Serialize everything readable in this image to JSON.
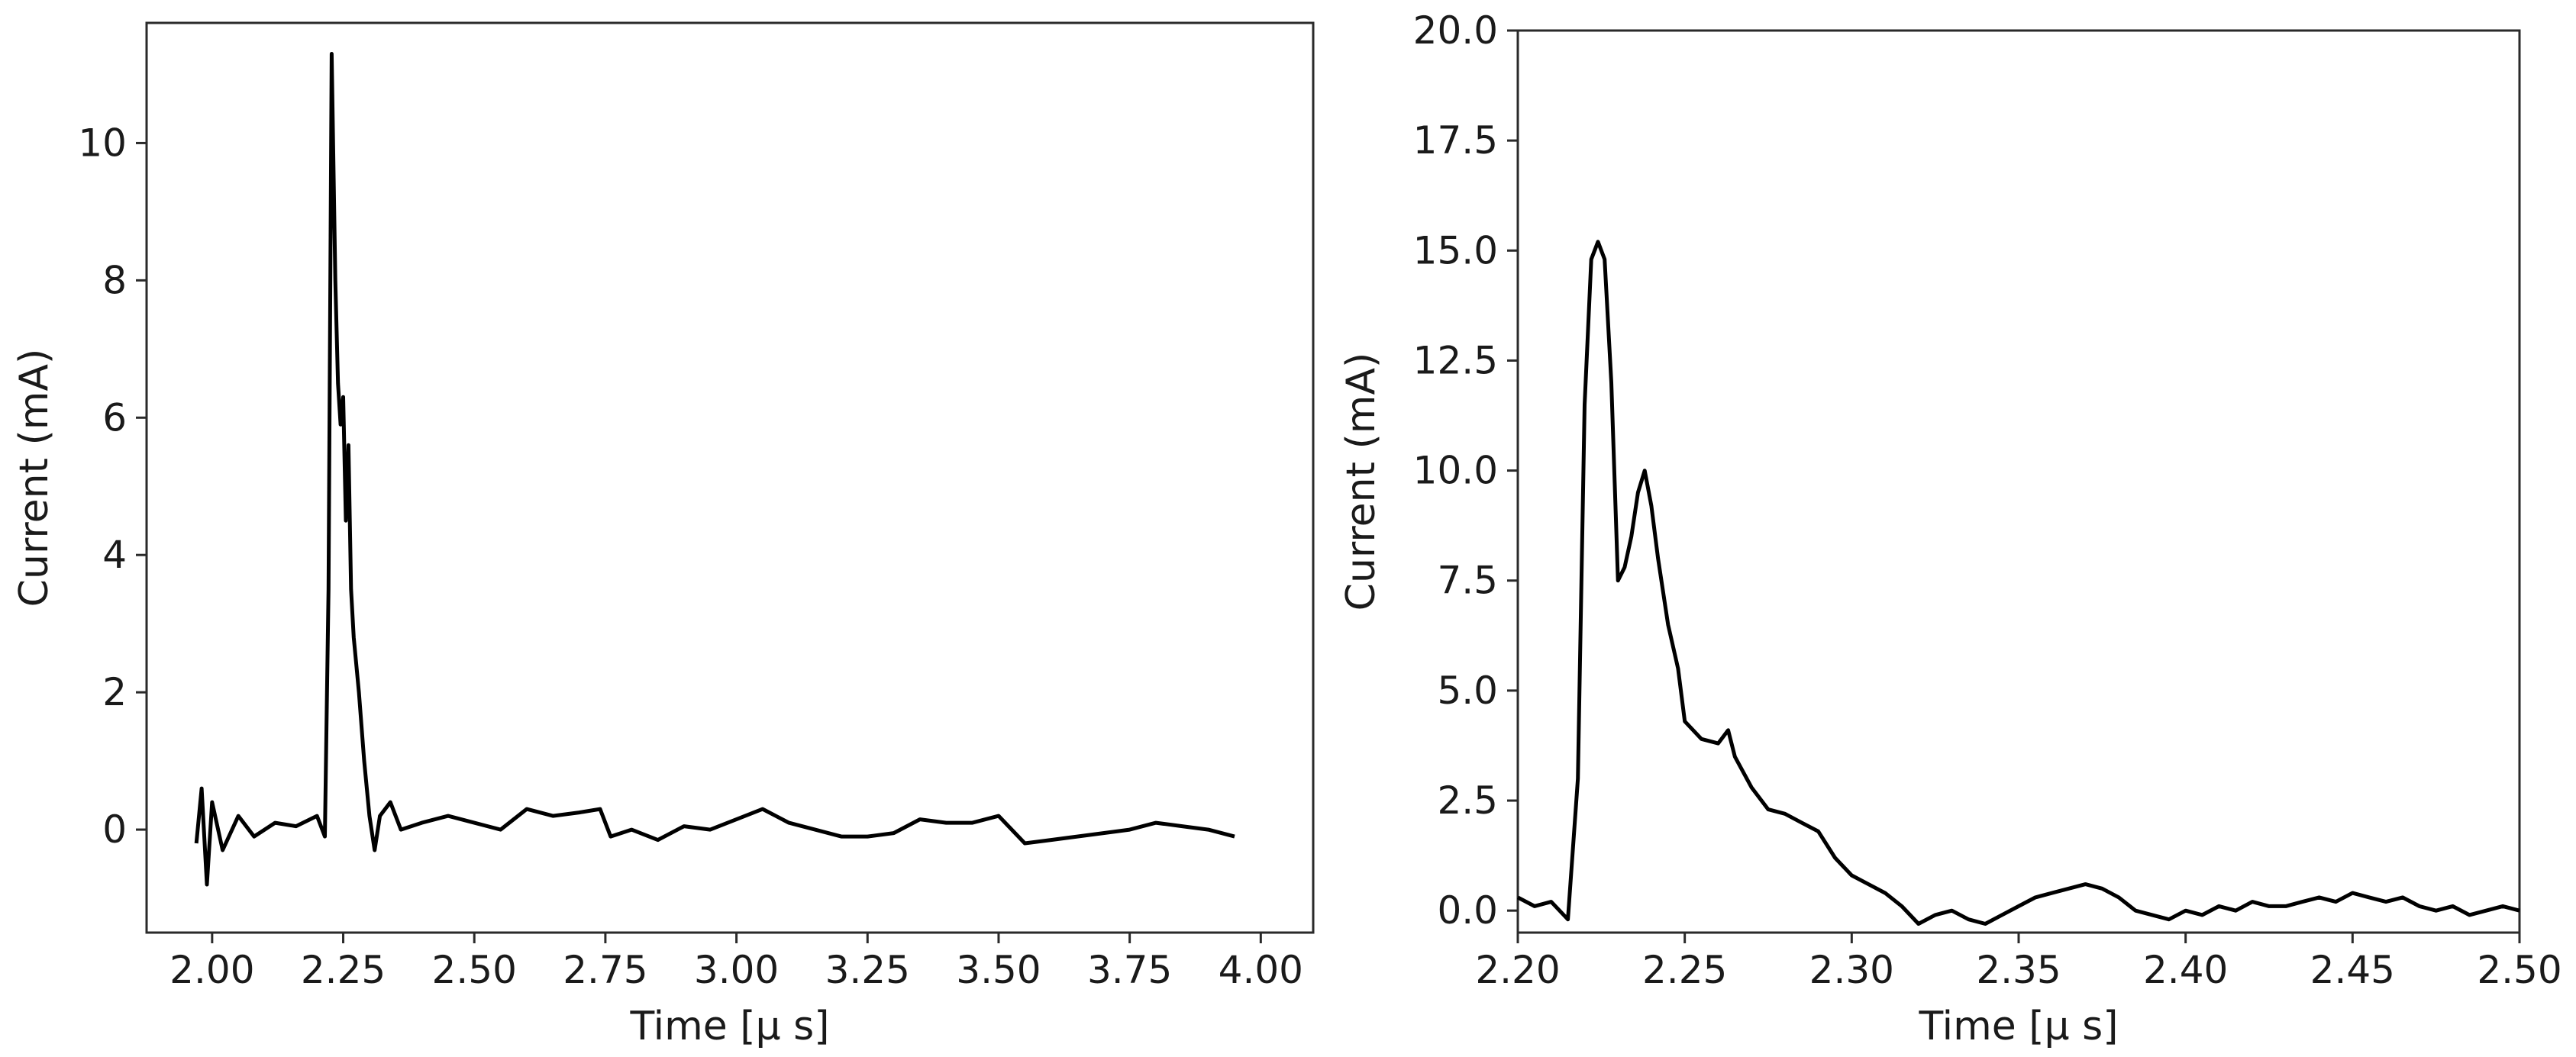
{
  "chart_data": [
    {
      "type": "line",
      "xlabel": "Time [μ s]",
      "ylabel": "Current (mA)",
      "xlim": [
        1.875,
        4.1
      ],
      "ylim": [
        -1.5,
        11.75
      ],
      "xticks": [
        "2.00",
        "2.25",
        "2.50",
        "2.75",
        "3.00",
        "3.25",
        "3.50",
        "3.75",
        "4.00"
      ],
      "yticks": [
        "0",
        "2",
        "4",
        "6",
        "8",
        "10"
      ],
      "grid": false,
      "series": [
        {
          "color": "#000000",
          "x": [
            1.97,
            1.98,
            1.99,
            2.0,
            2.02,
            2.05,
            2.08,
            2.12,
            2.16,
            2.2,
            2.215,
            2.222,
            2.228,
            2.235,
            2.24,
            2.245,
            2.25,
            2.255,
            2.26,
            2.265,
            2.27,
            2.28,
            2.29,
            2.3,
            2.31,
            2.32,
            2.34,
            2.36,
            2.4,
            2.45,
            2.5,
            2.55,
            2.6,
            2.65,
            2.7,
            2.74,
            2.76,
            2.8,
            2.85,
            2.9,
            2.95,
            3.0,
            3.05,
            3.1,
            3.15,
            3.2,
            3.25,
            3.3,
            3.35,
            3.4,
            3.45,
            3.5,
            3.55,
            3.6,
            3.65,
            3.7,
            3.75,
            3.8,
            3.85,
            3.9,
            3.95
          ],
          "y": [
            -0.2,
            0.6,
            -0.8,
            0.4,
            -0.3,
            0.2,
            -0.1,
            0.1,
            0.05,
            0.2,
            -0.1,
            3.5,
            11.3,
            8.0,
            6.5,
            5.9,
            6.3,
            4.5,
            5.6,
            3.5,
            2.8,
            2.0,
            1.0,
            0.2,
            -0.3,
            0.2,
            0.4,
            0.0,
            0.1,
            0.2,
            0.1,
            0.0,
            0.3,
            0.2,
            0.25,
            0.3,
            -0.1,
            0.0,
            -0.15,
            0.05,
            0.0,
            0.15,
            0.3,
            0.1,
            0.0,
            -0.1,
            -0.1,
            -0.05,
            0.15,
            0.1,
            0.1,
            0.2,
            -0.2,
            -0.15,
            -0.1,
            -0.05,
            0.0,
            0.1,
            0.05,
            0.0,
            -0.1
          ]
        }
      ]
    },
    {
      "type": "line",
      "xlabel": "Time [μ s]",
      "ylabel": "Current (mA)",
      "xlim": [
        2.2,
        2.5
      ],
      "ylim": [
        -0.5,
        20.0
      ],
      "xticks": [
        "2.20",
        "2.25",
        "2.30",
        "2.35",
        "2.40",
        "2.45",
        "2.50"
      ],
      "yticks": [
        "0.0",
        "2.5",
        "5.0",
        "7.5",
        "10.0",
        "12.5",
        "15.0",
        "17.5",
        "20.0"
      ],
      "grid": false,
      "series": [
        {
          "color": "#000000",
          "x": [
            2.2,
            2.205,
            2.21,
            2.215,
            2.218,
            2.22,
            2.222,
            2.224,
            2.226,
            2.228,
            2.23,
            2.232,
            2.234,
            2.236,
            2.238,
            2.24,
            2.242,
            2.245,
            2.248,
            2.25,
            2.255,
            2.26,
            2.263,
            2.265,
            2.27,
            2.275,
            2.28,
            2.285,
            2.29,
            2.295,
            2.3,
            2.305,
            2.31,
            2.315,
            2.32,
            2.325,
            2.33,
            2.335,
            2.34,
            2.345,
            2.35,
            2.355,
            2.36,
            2.365,
            2.37,
            2.375,
            2.38,
            2.385,
            2.39,
            2.395,
            2.4,
            2.405,
            2.41,
            2.415,
            2.42,
            2.425,
            2.43,
            2.435,
            2.44,
            2.445,
            2.45,
            2.455,
            2.46,
            2.465,
            2.47,
            2.475,
            2.48,
            2.485,
            2.49,
            2.495,
            2.5
          ],
          "y": [
            0.3,
            0.1,
            0.2,
            -0.2,
            3.0,
            11.5,
            14.8,
            15.2,
            14.8,
            12.0,
            7.5,
            7.8,
            8.5,
            9.5,
            10.0,
            9.2,
            8.0,
            6.5,
            5.5,
            4.3,
            3.9,
            3.8,
            4.1,
            3.5,
            2.8,
            2.3,
            2.2,
            2.0,
            1.8,
            1.2,
            0.8,
            0.6,
            0.4,
            0.1,
            -0.3,
            -0.1,
            0.0,
            -0.2,
            -0.3,
            -0.1,
            0.1,
            0.3,
            0.4,
            0.5,
            0.6,
            0.5,
            0.3,
            0.0,
            -0.1,
            -0.2,
            0.0,
            -0.1,
            0.1,
            0.0,
            0.2,
            0.1,
            0.1,
            0.2,
            0.3,
            0.2,
            0.4,
            0.3,
            0.2,
            0.3,
            0.1,
            0.0,
            0.1,
            -0.1,
            0.0,
            0.1,
            0.0
          ]
        }
      ]
    }
  ]
}
